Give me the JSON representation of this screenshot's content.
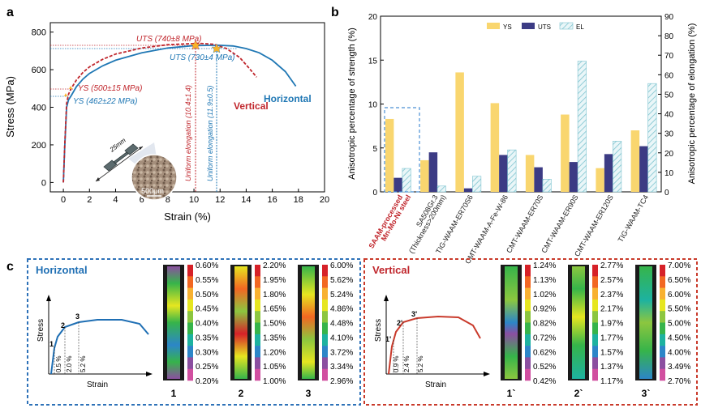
{
  "chart_data": [
    {
      "panel": "a",
      "type": "line",
      "xlabel": "Strain (%)",
      "ylabel": "Stress (MPa)",
      "xlim": [
        -1,
        20
      ],
      "ylim": [
        -50,
        850
      ],
      "xticks": [
        0,
        2,
        4,
        6,
        8,
        10,
        12,
        14,
        16,
        18,
        20
      ],
      "yticks": [
        0,
        200,
        400,
        600,
        800
      ],
      "series": [
        {
          "name": "Horizontal",
          "color": "#1f77b4",
          "dash": "solid",
          "x": [
            0,
            0.1,
            0.25,
            0.4,
            0.6,
            1,
            1.5,
            2,
            3,
            4,
            6,
            8,
            10,
            11.9,
            13,
            14,
            15,
            16,
            17,
            17.8
          ],
          "y": [
            0,
            180,
            400,
            440,
            462,
            510,
            550,
            580,
            620,
            650,
            690,
            715,
            728,
            730,
            726,
            712,
            690,
            650,
            590,
            512
          ]
        },
        {
          "name": "Vertical",
          "color": "#c0262c",
          "dash": "dashed",
          "x": [
            0,
            0.1,
            0.25,
            0.4,
            0.6,
            1,
            1.5,
            2,
            3,
            4,
            6,
            8,
            10.4,
            11.5,
            12.5,
            13.5,
            14.2,
            14.8
          ],
          "y": [
            0,
            190,
            420,
            470,
            500,
            545,
            585,
            615,
            655,
            683,
            715,
            733,
            740,
            735,
            712,
            665,
            610,
            560
          ]
        }
      ],
      "annotations": {
        "uts_v": "UTS (740±8 MPa)",
        "uts_h": "UTS (730±4 MPa)",
        "ys_v": "YS (500±15 MPa)",
        "ys_h": "YS (462±22 MPa)",
        "ue_v": "Uniform elongation (10.4±1.4)",
        "ue_h": "Uniform elongation (11.9±0.5)",
        "label_v": "Vertical",
        "label_h": "Horizontal",
        "inset_len": "25mm",
        "inset_scale": "500μm"
      }
    },
    {
      "panel": "b",
      "type": "bar",
      "ylabel_left": "Anisotropic percentage of strength (%)",
      "ylabel_right": "Anisotropic percentage of elongation (%)",
      "ylim_left": [
        0,
        20
      ],
      "ylim_right": [
        0,
        90
      ],
      "yticks_left": [
        0,
        5,
        10,
        15,
        20
      ],
      "yticks_right": [
        0,
        10,
        20,
        30,
        40,
        50,
        60,
        70,
        80,
        90
      ],
      "legend": [
        "YS",
        "UTS",
        "EL"
      ],
      "categories": [
        "SAAM-processed Mn-Mo-Ni steel",
        "SA508Gr.3 (Thickness>200mm)",
        "TIG-WAAM-ER70S6",
        "CMT-WAAM-A-Fe-W-86",
        "CMT-WAAM-ER70S",
        "CMT-WAAM-ER90S",
        "CMT-WAAM-ER120S",
        "TIG-WAAM-TC4"
      ],
      "series": [
        {
          "name": "YS",
          "axis": "left",
          "color": "#f9d66f",
          "values": [
            8.3,
            3.6,
            13.6,
            10.1,
            4.2,
            8.8,
            2.7,
            7.0
          ]
        },
        {
          "name": "UTS",
          "axis": "left",
          "color": "#3c3b84",
          "values": [
            1.6,
            4.5,
            0.4,
            4.2,
            2.8,
            3.4,
            4.3,
            5.2
          ]
        },
        {
          "name": "EL",
          "axis": "right",
          "color": "#9fd4dc",
          "values": [
            12,
            3,
            8,
            21.5,
            6.5,
            67,
            26,
            55.5
          ]
        }
      ]
    }
  ],
  "panel_labels": {
    "a": "a",
    "b": "b",
    "c": "c"
  },
  "panel_c": {
    "left_title": "Horizontal",
    "right_title": "Vertical",
    "stress_label": "Stress",
    "strain_label": "Strain",
    "left_points": [
      "1",
      "2",
      "3"
    ],
    "right_points": [
      "1'",
      "2'",
      "3'"
    ],
    "left_strain_marks": [
      "0.5 %",
      "2.0 %",
      "5.2 %"
    ],
    "right_strain_marks": [
      "0.9 %",
      "2.4 %",
      "5.2 %"
    ],
    "left_specimens": [
      "1",
      "2",
      "3"
    ],
    "right_specimens": [
      "1`",
      "2`",
      "3`"
    ],
    "scales": [
      [
        "0.60%",
        "0.55%",
        "0.50%",
        "0.45%",
        "0.40%",
        "0.35%",
        "0.30%",
        "0.25%",
        "0.20%"
      ],
      [
        "2.20%",
        "1.95%",
        "1.80%",
        "1.65%",
        "1.50%",
        "1.35%",
        "1.20%",
        "1.05%",
        "1.00%"
      ],
      [
        "6.00%",
        "5.62%",
        "5.24%",
        "4.86%",
        "4.48%",
        "4.10%",
        "3.72%",
        "3.34%",
        "2.96%"
      ],
      [
        "1.24%",
        "1.13%",
        "1.02%",
        "0.92%",
        "0.82%",
        "0.72%",
        "0.62%",
        "0.52%",
        "0.42%"
      ],
      [
        "2.77%",
        "2.57%",
        "2.37%",
        "2.17%",
        "1.97%",
        "1.77%",
        "1.57%",
        "1.37%",
        "1.17%"
      ],
      [
        "7.00%",
        "6.50%",
        "6.00%",
        "5.50%",
        "5.00%",
        "4.50%",
        "4.00%",
        "3.49%",
        "2.70%"
      ]
    ],
    "colorbar_colors": [
      "#d62128",
      "#f26722",
      "#f8b131",
      "#e6e620",
      "#8cc63f",
      "#36b44a",
      "#1db2a0",
      "#2c86c8",
      "#8b4fa0",
      "#d14fa0"
    ]
  }
}
